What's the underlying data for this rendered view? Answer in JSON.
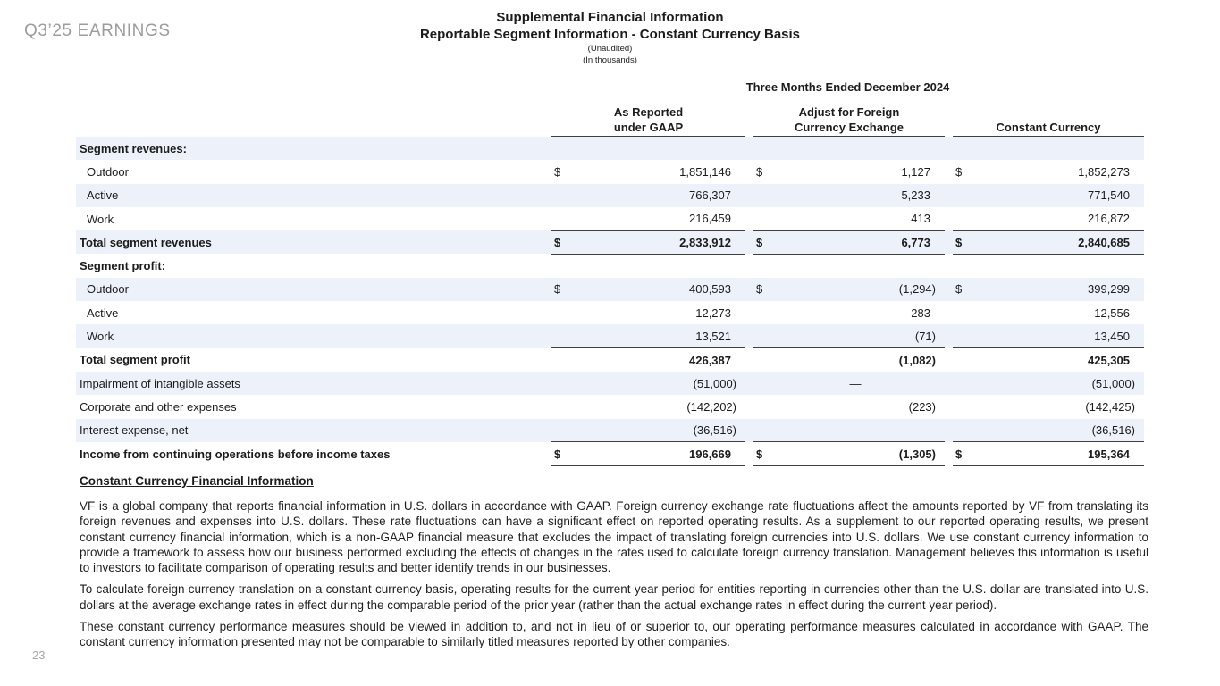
{
  "brand": "Q3’25 EARNINGS",
  "page_number": "23",
  "title": {
    "line1": "Supplemental Financial Information",
    "line2": "Reportable Segment Information - Constant Currency Basis",
    "line3": "(Unaudited)",
    "line4": "(In thousands)"
  },
  "table": {
    "period_header": "Three Months Ended December 2024",
    "columns": [
      {
        "line1": "As Reported",
        "line2": "under GAAP"
      },
      {
        "line1": "Adjust for Foreign",
        "line2": "Currency Exchange"
      },
      {
        "line1": "",
        "line2": "Constant Currency"
      }
    ],
    "rows": [
      {
        "label": "Segment revenues:",
        "bold": true,
        "indent": false,
        "dollar": false,
        "values": [
          "",
          "",
          ""
        ],
        "underline": false
      },
      {
        "label": "Outdoor",
        "bold": false,
        "indent": true,
        "dollar": true,
        "values": [
          "1,851,146",
          "1,127",
          "1,852,273"
        ],
        "underline": false
      },
      {
        "label": "Active",
        "bold": false,
        "indent": true,
        "dollar": false,
        "values": [
          "766,307",
          "5,233",
          "771,540"
        ],
        "underline": false
      },
      {
        "label": "Work",
        "bold": false,
        "indent": true,
        "dollar": false,
        "values": [
          "216,459",
          "413",
          "216,872"
        ],
        "underline": true
      },
      {
        "label": "Total segment revenues",
        "bold": true,
        "indent": false,
        "dollar": true,
        "values": [
          "2,833,912",
          "6,773",
          "2,840,685"
        ],
        "underline": true
      },
      {
        "label": "Segment profit:",
        "bold": true,
        "indent": false,
        "dollar": false,
        "values": [
          "",
          "",
          ""
        ],
        "underline": false
      },
      {
        "label": "Outdoor",
        "bold": false,
        "indent": true,
        "dollar": true,
        "values": [
          "400,593",
          "(1,294)",
          "399,299"
        ],
        "underline": false
      },
      {
        "label": "Active",
        "bold": false,
        "indent": true,
        "dollar": false,
        "values": [
          "12,273",
          "283",
          "12,556"
        ],
        "underline": false
      },
      {
        "label": "Work",
        "bold": false,
        "indent": true,
        "dollar": false,
        "values": [
          "13,521",
          "(71)",
          "13,450"
        ],
        "underline": true
      },
      {
        "label": "Total segment profit",
        "bold": true,
        "indent": false,
        "dollar": false,
        "values": [
          "426,387",
          "(1,082)",
          "425,305"
        ],
        "underline": false
      },
      {
        "label": "Impairment of intangible assets",
        "bold": false,
        "indent": false,
        "dollar": false,
        "values": [
          "(51,000)",
          "—",
          "(51,000)"
        ],
        "underline": false
      },
      {
        "label": "Corporate and other expenses",
        "bold": false,
        "indent": false,
        "dollar": false,
        "values": [
          "(142,202)",
          "(223)",
          "(142,425)"
        ],
        "underline": false
      },
      {
        "label": "Interest expense, net",
        "bold": false,
        "indent": false,
        "dollar": false,
        "values": [
          "(36,516)",
          "—",
          "(36,516)"
        ],
        "underline": true
      },
      {
        "label": "Income from continuing operations before income taxes",
        "bold": true,
        "indent": false,
        "dollar": true,
        "values": [
          "196,669",
          "(1,305)",
          "195,364"
        ],
        "underline": true
      }
    ]
  },
  "notes": {
    "heading": "Constant Currency Financial Information",
    "paragraphs": [
      "VF is a global company that reports financial information in U.S. dollars in accordance with GAAP. Foreign currency exchange rate fluctuations affect the amounts reported by VF from translating its foreign revenues and expenses into U.S. dollars. These rate fluctuations can have a significant effect on reported operating results. As a supplement to our reported operating results, we present constant currency financial information, which is a non-GAAP financial measure that excludes the impact of translating foreign currencies into U.S. dollars. We use constant currency information to provide a framework to assess how our business performed excluding the effects of changes in the rates used to calculate foreign currency translation. Management believes this information is useful to investors to facilitate comparison of operating results and better identify trends in our businesses.",
      "To calculate foreign currency translation on a constant currency basis, operating results for the current year period for entities reporting in currencies other than the U.S. dollar are translated into U.S. dollars at the average exchange rates in effect during the comparable period of the prior year (rather than the actual exchange rates in effect during the current year period).",
      "These constant currency performance measures should be viewed in addition to, and not in lieu of or superior to, our operating performance measures calculated in accordance with GAAP. The constant currency information presented may not be comparable to similarly titled measures reported by other companies."
    ]
  },
  "colors": {
    "stripe": "#edf1f9",
    "rule": "#3f3f3f",
    "muted_text": "#9c9c9c"
  }
}
